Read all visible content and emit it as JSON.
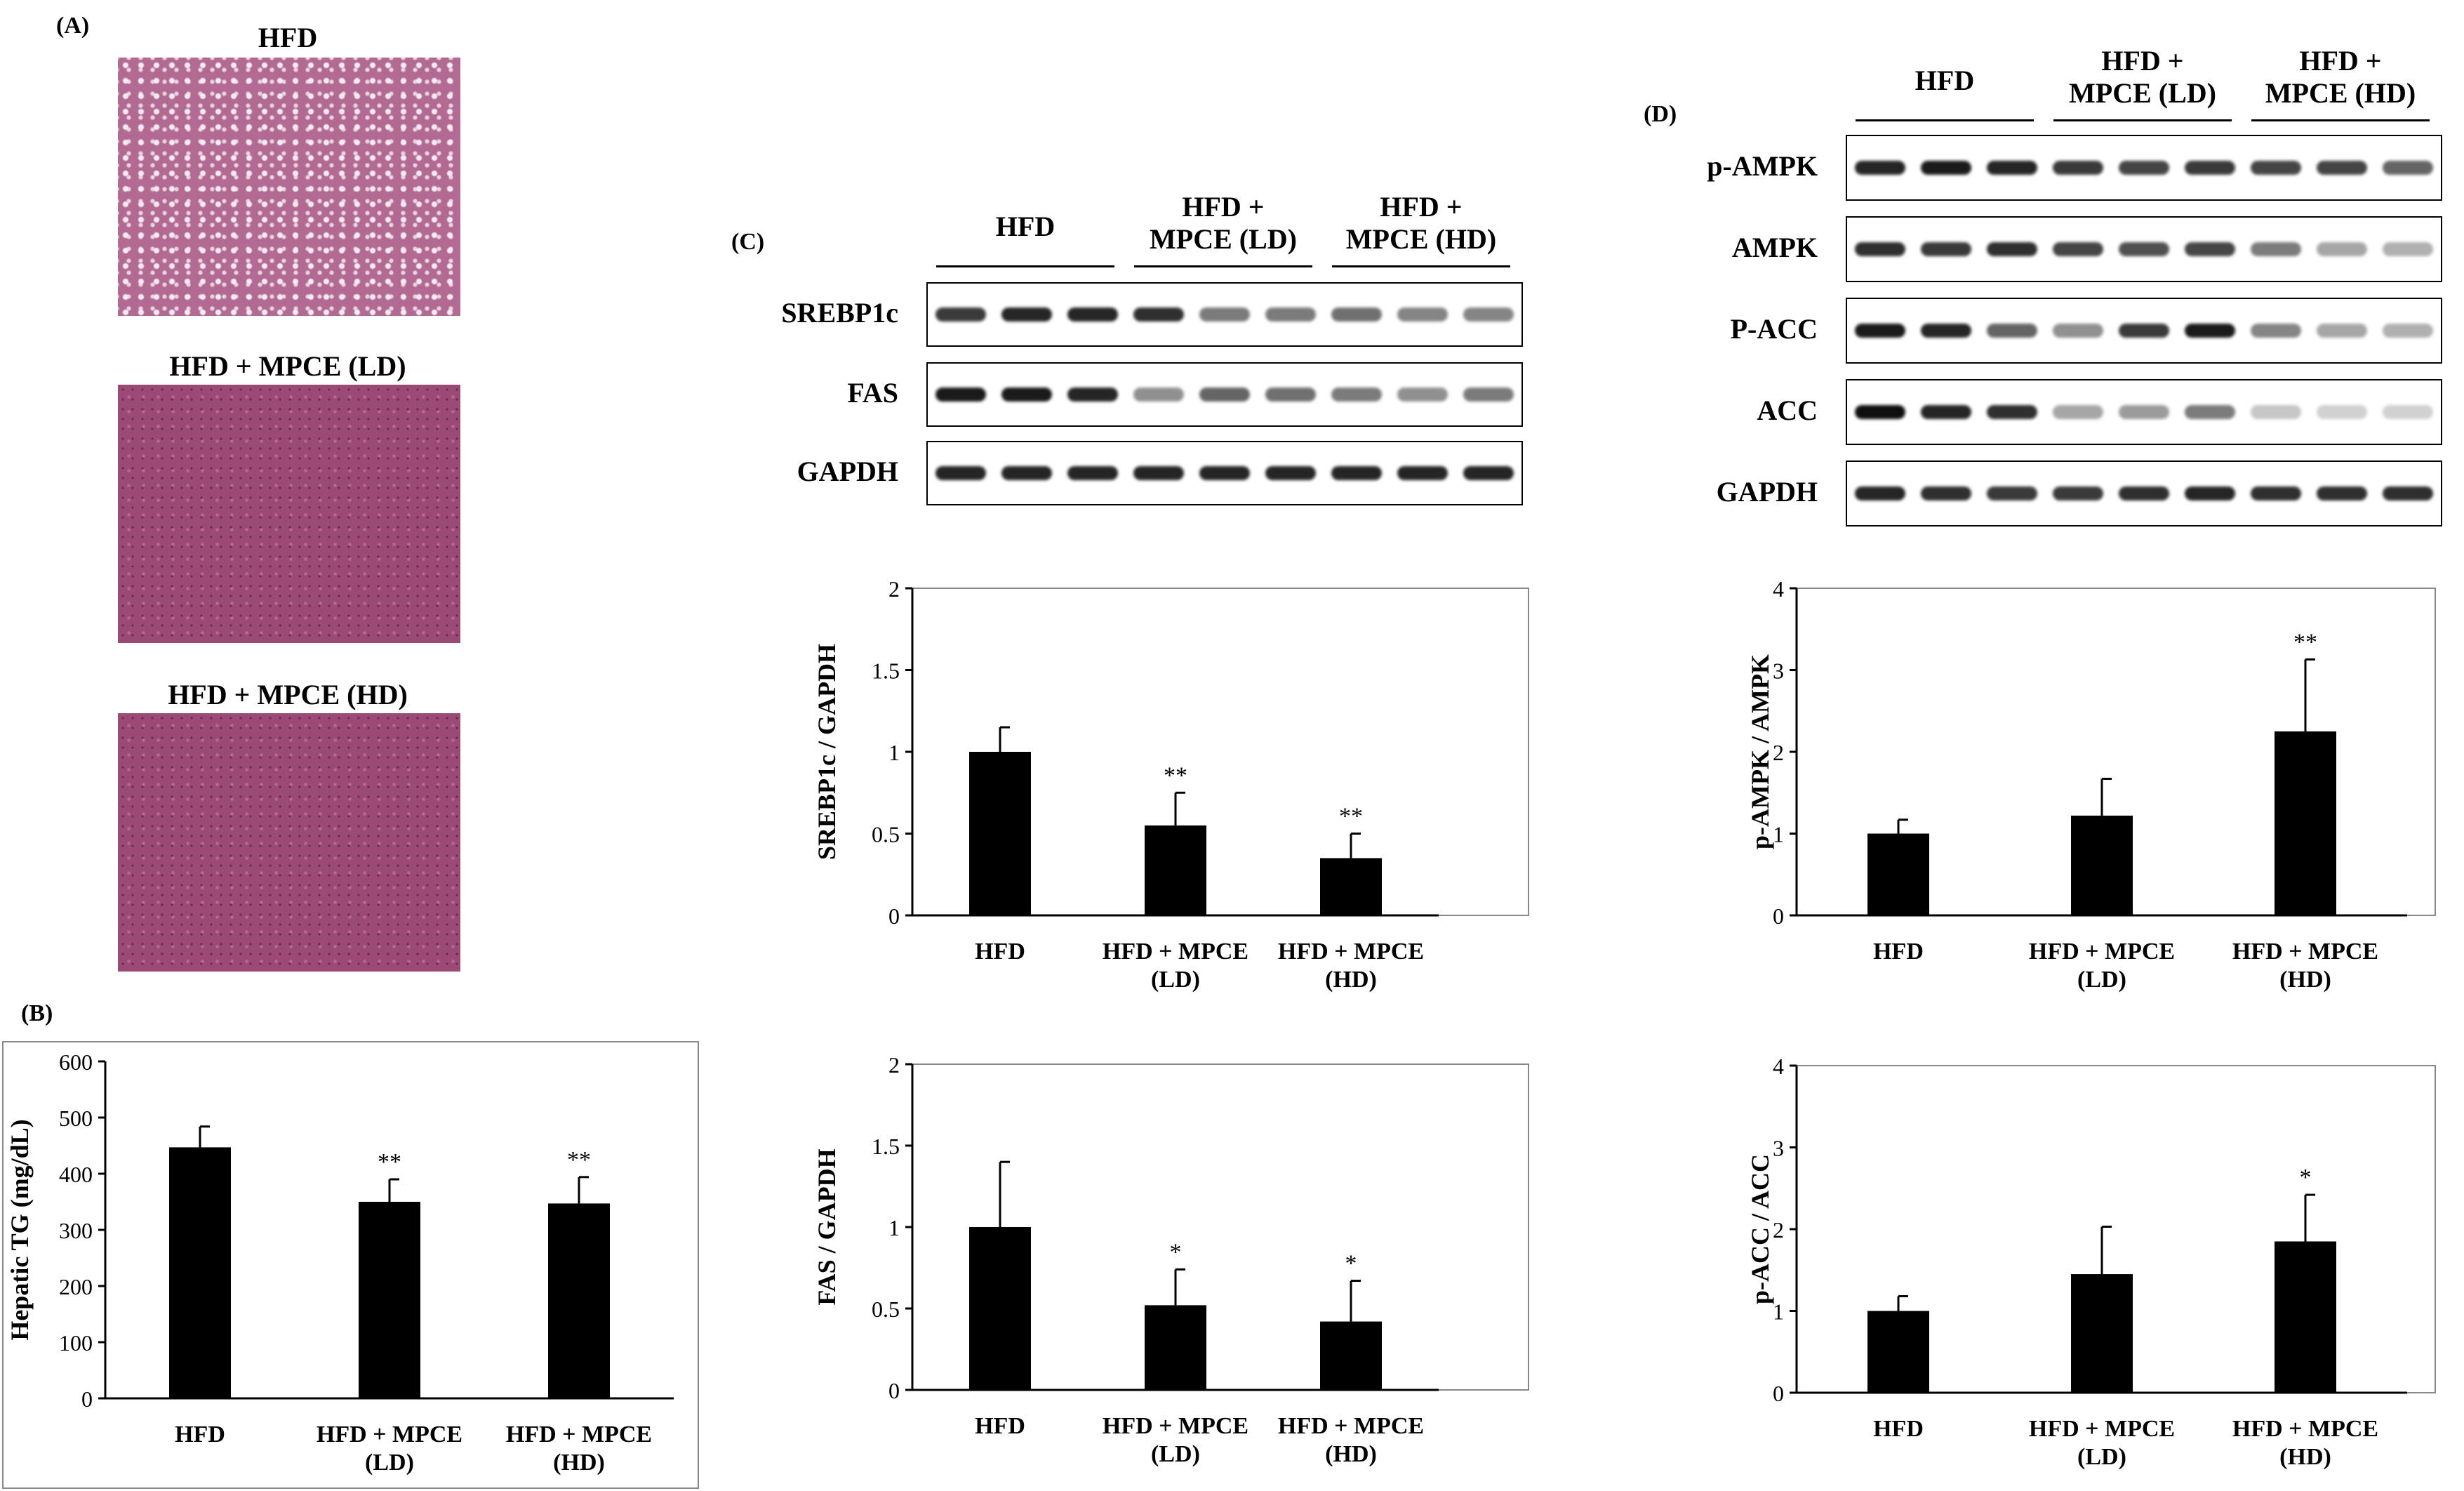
{
  "panels": {
    "A": "(A)",
    "B": "(B)",
    "C": "(C)",
    "D": "(D)"
  },
  "micrographs": [
    {
      "title": "HFD"
    },
    {
      "title": "HFD + MPCE (LD)"
    },
    {
      "title": "HFD + MPCE (HD)"
    }
  ],
  "blots_C": {
    "groups": [
      {
        "line1": "HFD",
        "line2": ""
      },
      {
        "line1": "HFD +",
        "line2": "MPCE (LD)"
      },
      {
        "line1": "HFD +",
        "line2": "MPCE (HD)"
      }
    ],
    "rows": [
      {
        "label": "SREBP1c",
        "intensity": [
          0.8,
          0.9,
          0.9,
          0.85,
          0.5,
          0.5,
          0.55,
          0.45,
          0.45
        ]
      },
      {
        "label": "FAS",
        "intensity": [
          0.95,
          0.95,
          0.9,
          0.4,
          0.6,
          0.55,
          0.5,
          0.4,
          0.5
        ]
      },
      {
        "label": "GAPDH",
        "intensity": [
          0.9,
          0.9,
          0.9,
          0.9,
          0.9,
          0.9,
          0.9,
          0.9,
          0.9
        ]
      }
    ]
  },
  "blots_D": {
    "groups": [
      {
        "line1": "HFD",
        "line2": ""
      },
      {
        "line1": "HFD +",
        "line2": "MPCE (LD)"
      },
      {
        "line1": "HFD +",
        "line2": "MPCE (HD)"
      }
    ],
    "rows": [
      {
        "label": "p-AMPK",
        "intensity": [
          0.9,
          0.95,
          0.9,
          0.8,
          0.75,
          0.8,
          0.75,
          0.75,
          0.6
        ]
      },
      {
        "label": "AMPK",
        "intensity": [
          0.85,
          0.8,
          0.85,
          0.75,
          0.7,
          0.75,
          0.5,
          0.3,
          0.25
        ]
      },
      {
        "label": "P-ACC",
        "intensity": [
          0.95,
          0.9,
          0.6,
          0.4,
          0.8,
          0.95,
          0.45,
          0.3,
          0.25
        ]
      },
      {
        "label": "ACC",
        "intensity": [
          1.0,
          0.9,
          0.85,
          0.3,
          0.35,
          0.5,
          0.15,
          0.1,
          0.1
        ]
      },
      {
        "label": "GAPDH",
        "intensity": [
          0.9,
          0.85,
          0.8,
          0.8,
          0.85,
          0.9,
          0.85,
          0.85,
          0.85
        ]
      }
    ]
  },
  "chart_data": [
    {
      "type": "bar",
      "panel": "B",
      "categories": [
        [
          "HFD"
        ],
        [
          "HFD + MPCE",
          "(LD)"
        ],
        [
          "HFD + MPCE",
          "(HD)"
        ]
      ],
      "values": [
        447,
        350,
        347
      ],
      "errors": [
        37,
        40,
        47
      ],
      "annotations": [
        "",
        "**",
        "**"
      ],
      "ylabel": "Hepatic TG (mg/dL)",
      "ylim": [
        0,
        600
      ],
      "yticks": [
        "0",
        "100",
        "200",
        "300",
        "400",
        "500",
        "600"
      ]
    },
    {
      "type": "bar",
      "panel": "C",
      "categories": [
        [
          "HFD"
        ],
        [
          "HFD + MPCE",
          "(LD)"
        ],
        [
          "HFD + MPCE",
          "(HD)"
        ]
      ],
      "values": [
        1.0,
        0.55,
        0.35
      ],
      "errors": [
        0.15,
        0.2,
        0.15
      ],
      "annotations": [
        "",
        "**",
        "**"
      ],
      "ylabel": "SREBP1c / GAPDH",
      "ylim": [
        0,
        2
      ],
      "yticks": [
        "0",
        "0.5",
        "1",
        "1.5",
        "2"
      ]
    },
    {
      "type": "bar",
      "panel": "C",
      "categories": [
        [
          "HFD"
        ],
        [
          "HFD + MPCE",
          "(LD)"
        ],
        [
          "HFD + MPCE",
          "(HD)"
        ]
      ],
      "values": [
        1.0,
        0.52,
        0.42
      ],
      "errors": [
        0.4,
        0.22,
        0.25
      ],
      "annotations": [
        "",
        "*",
        "*"
      ],
      "ylabel": "FAS / GAPDH",
      "ylim": [
        0,
        2
      ],
      "yticks": [
        "0",
        "0.5",
        "1",
        "1.5",
        "2"
      ]
    },
    {
      "type": "bar",
      "panel": "D",
      "categories": [
        [
          "HFD"
        ],
        [
          "HFD + MPCE",
          "(LD)"
        ],
        [
          "HFD + MPCE",
          "(HD)"
        ]
      ],
      "values": [
        1.0,
        1.22,
        2.25
      ],
      "errors": [
        0.17,
        0.45,
        0.88
      ],
      "annotations": [
        "",
        "",
        "**"
      ],
      "ylabel": "p-AMPK / AMPK",
      "ylim": [
        0,
        4
      ],
      "yticks": [
        "0",
        "1",
        "2",
        "3",
        "4"
      ]
    },
    {
      "type": "bar",
      "panel": "D",
      "categories": [
        [
          "HFD"
        ],
        [
          "HFD + MPCE",
          "(LD)"
        ],
        [
          "HFD + MPCE",
          "(HD)"
        ]
      ],
      "values": [
        1.0,
        1.45,
        1.85
      ],
      "errors": [
        0.18,
        0.58,
        0.57
      ],
      "annotations": [
        "",
        "",
        "*"
      ],
      "ylabel": "p-ACC / ACC",
      "ylim": [
        0,
        4
      ],
      "yticks": [
        "0",
        "1",
        "2",
        "3",
        "4"
      ]
    }
  ]
}
